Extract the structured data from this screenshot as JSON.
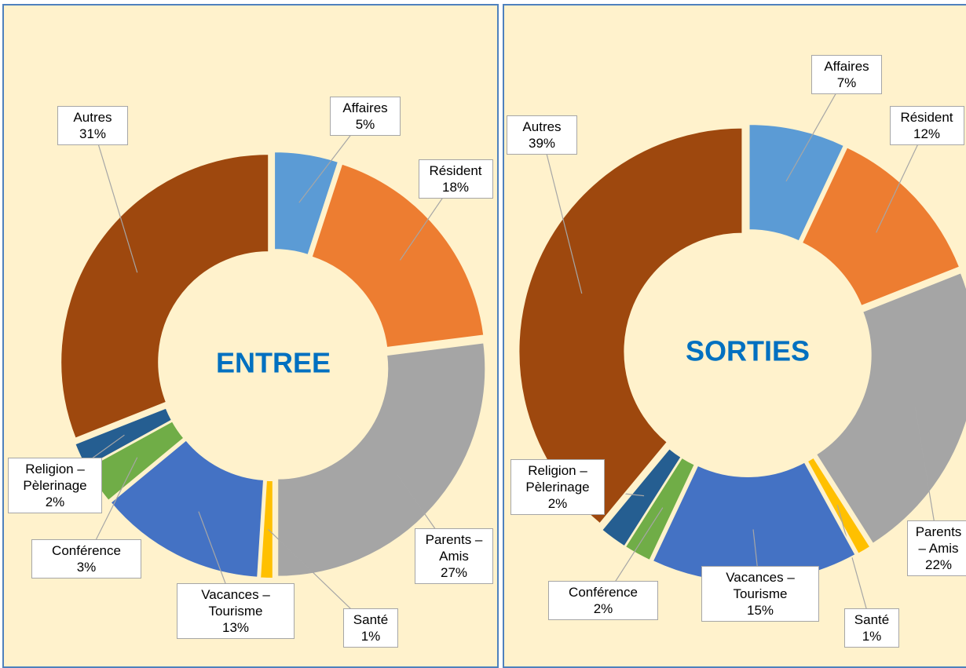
{
  "chart_data": [
    {
      "type": "pie",
      "title": "ENTREE",
      "categories": [
        "Affaires",
        "Résident",
        "Parents – Amis",
        "Santé",
        "Vacances – Tourisme",
        "Conférence",
        "Religion – Pèlerinage",
        "Autres"
      ],
      "values": [
        5,
        18,
        27,
        1,
        13,
        3,
        2,
        31
      ],
      "value_labels": [
        "5%",
        "18%",
        "27%",
        "1%",
        "13%",
        "3%",
        "2%",
        "31%"
      ],
      "colors": [
        "#5b9bd5",
        "#ed7d31",
        "#a5a5a5",
        "#ffc000",
        "#4472c4",
        "#70ad47",
        "#255e91",
        "#9e480e"
      ]
    },
    {
      "type": "pie",
      "title": "SORTIES",
      "categories": [
        "Affaires",
        "Résident",
        "Parents – Amis",
        "Santé",
        "Vacances – Tourisme",
        "Conférence",
        "Religion – Pèlerinage",
        "Autres"
      ],
      "values": [
        7,
        12,
        22,
        1,
        15,
        2,
        2,
        39
      ],
      "value_labels": [
        "7%",
        "12%",
        "22%",
        "1%",
        "15%",
        "2%",
        "2%",
        "39%"
      ],
      "colors": [
        "#5b9bd5",
        "#ed7d31",
        "#a5a5a5",
        "#ffc000",
        "#4472c4",
        "#70ad47",
        "#255e91",
        "#9e480e"
      ]
    }
  ]
}
